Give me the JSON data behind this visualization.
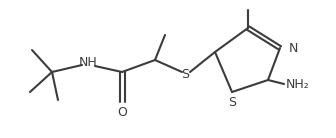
{
  "line_color": "#3c3c3c",
  "bg_color": "#ffffff",
  "bond_width": 1.5,
  "font_size": 8.5,
  "figsize": [
    3.36,
    1.38
  ],
  "dpi": 100,
  "nh2_label": "NH₂",
  "n_label": "N",
  "s_label": "S",
  "o_label": "O",
  "nh_label": "NH"
}
